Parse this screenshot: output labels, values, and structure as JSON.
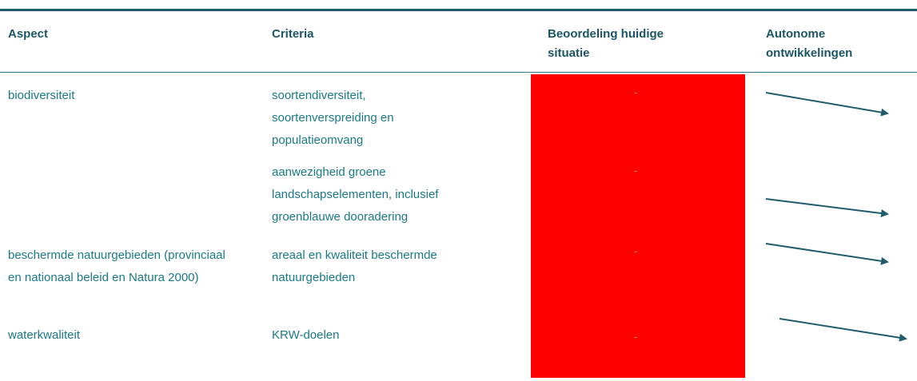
{
  "table": {
    "header": [
      "Aspect",
      "Criteria",
      "Beoordeling huidige situatie",
      "Autonome ontwikkelingen"
    ],
    "rows": [
      {
        "aspect": "biodiversiteit",
        "criteria": "soortendiversiteit, soortenverspreiding en populatieomvang",
        "rating": "-"
      },
      {
        "criteria": "aanwezigheid groene landschapselementen, inclusief groenblauwe dooradering",
        "rating": "-"
      },
      {
        "aspect": "beschermde natuurgebieden (provinciaal en nationaal beleid en Natura 2000)",
        "criteria": "areaal en kwaliteit beschermde natuurgebieden",
        "rating": "-"
      },
      {
        "aspect": "waterkwaliteit",
        "criteria": "KRW-doelen",
        "rating": "-"
      }
    ]
  }
}
